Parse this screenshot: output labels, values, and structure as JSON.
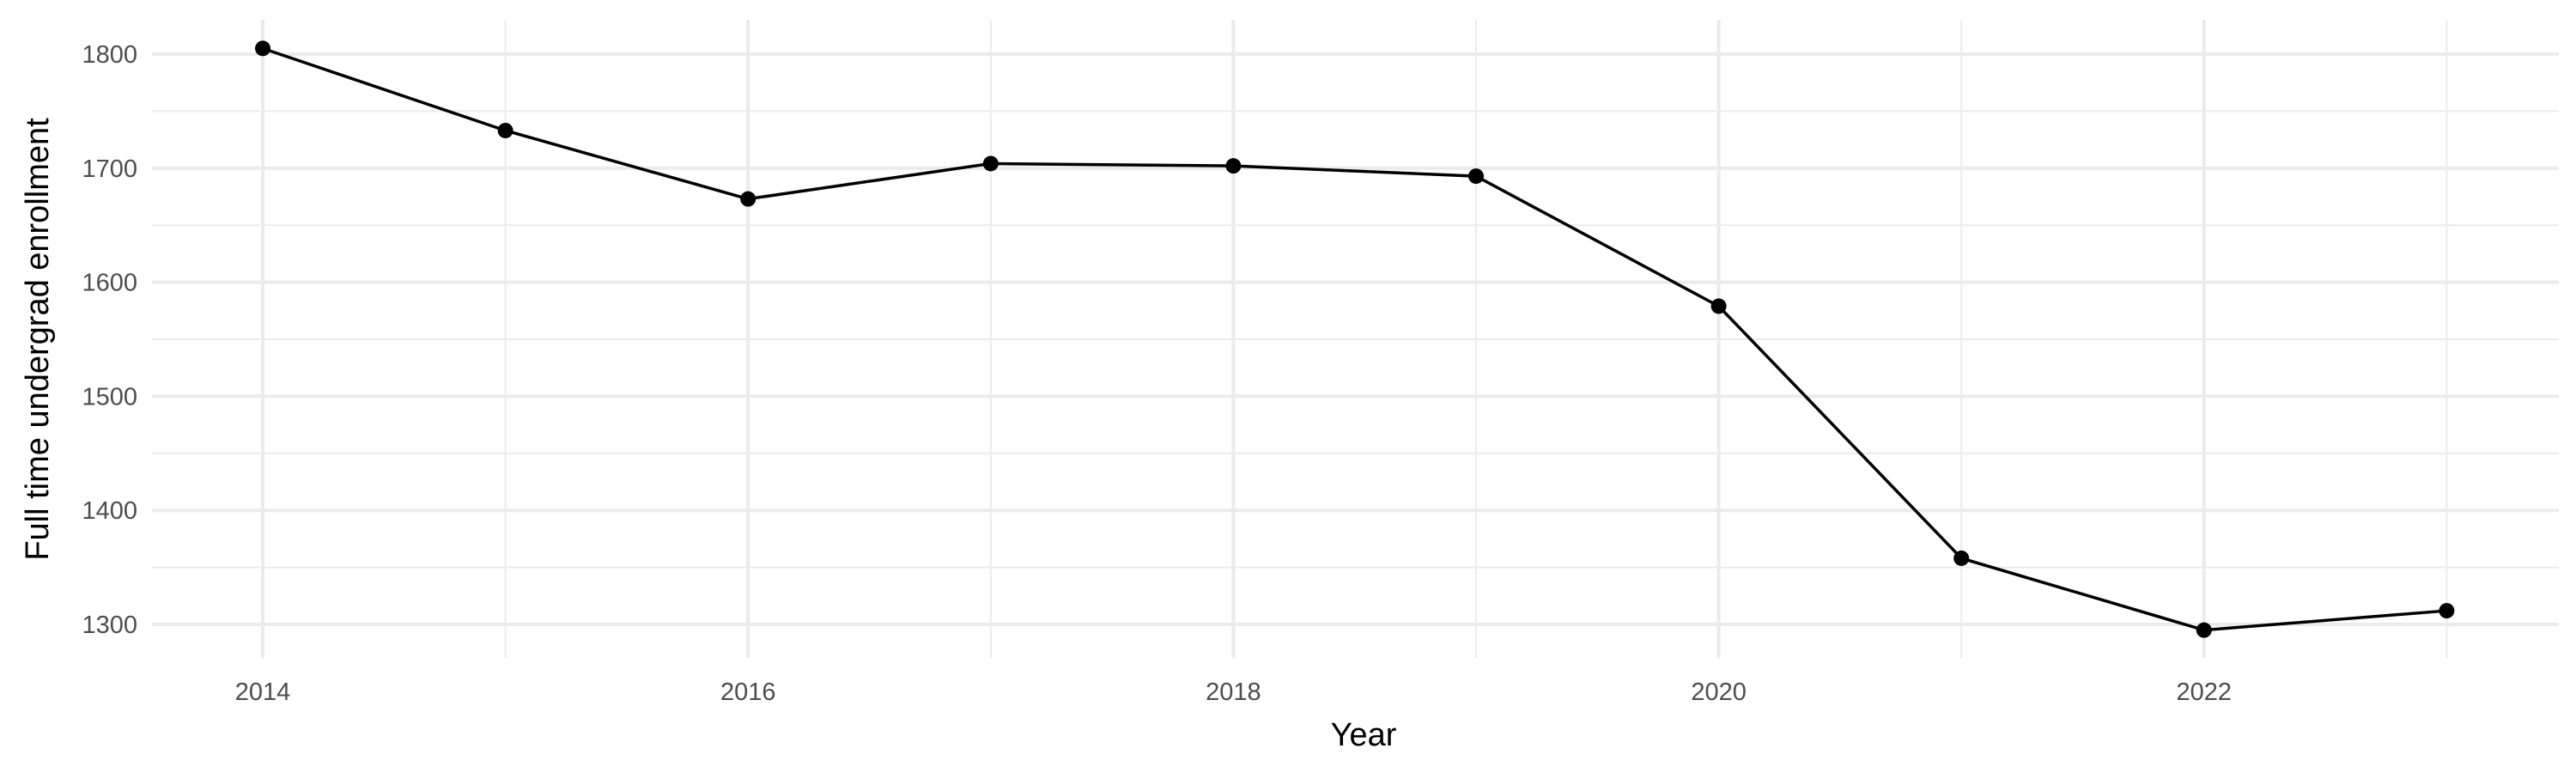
{
  "chart_data": {
    "type": "line",
    "title": "",
    "xlabel": "Year",
    "ylabel": "Full time undergrad enrollment",
    "x": [
      2014,
      2015,
      2016,
      2017,
      2018,
      2019,
      2020,
      2021,
      2022,
      2023
    ],
    "series": [
      {
        "values": [
          1805,
          1733,
          1673,
          1704,
          1702,
          1693,
          1579,
          1358,
          1295,
          1312
        ]
      }
    ],
    "x_ticks": [
      "2014",
      "2016",
      "2018",
      "2020",
      "2022"
    ],
    "y_ticks": [
      "1300",
      "1400",
      "1500",
      "1600",
      "1700",
      "1800"
    ],
    "xlim": [
      2013.55,
      2023.5
    ],
    "ylim": [
      1280,
      1820
    ],
    "grid": true,
    "legend": "none",
    "colors": {
      "line": "#000000",
      "grid": "#ebebeb",
      "tick_text": "#4d4d4d"
    }
  }
}
